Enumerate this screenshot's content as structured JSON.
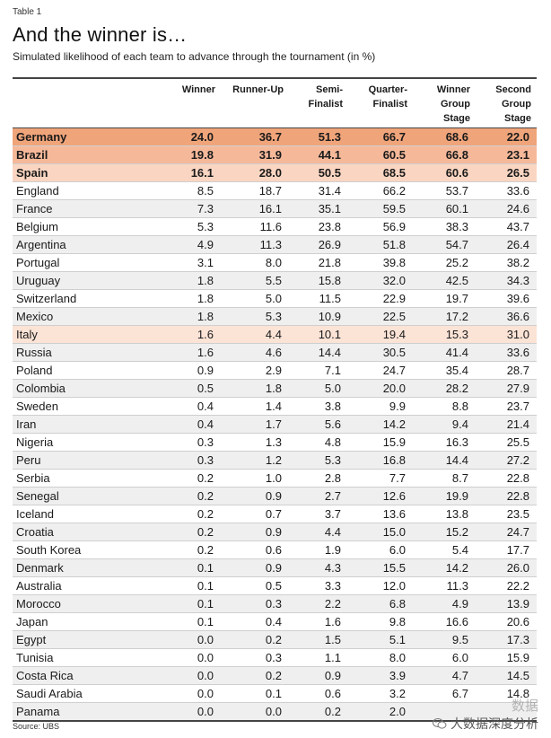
{
  "header": {
    "label": "Table 1",
    "title": "And the winner is…",
    "subtitle": "Simulated likelihood of each team to advance through the tournament (in %)"
  },
  "table": {
    "columns": [
      "",
      "Winner",
      "Runner-Up",
      "Semi-\nFinalist",
      "Quarter-\nFinalist",
      "Winner\nGroup\nStage",
      "Second\nGroup\nStage"
    ],
    "rows": [
      {
        "team": "Germany",
        "v": [
          "24.0",
          "36.7",
          "51.3",
          "66.7",
          "68.6",
          "22.0"
        ],
        "style": "hl-1"
      },
      {
        "team": "Brazil",
        "v": [
          "19.8",
          "31.9",
          "44.1",
          "60.5",
          "66.8",
          "23.1"
        ],
        "style": "hl-2"
      },
      {
        "team": "Spain",
        "v": [
          "16.1",
          "28.0",
          "50.5",
          "68.5",
          "60.6",
          "26.5"
        ],
        "style": "hl-3"
      },
      {
        "team": "England",
        "v": [
          "8.5",
          "18.7",
          "31.4",
          "66.2",
          "53.7",
          "33.6"
        ],
        "style": ""
      },
      {
        "team": "France",
        "v": [
          "7.3",
          "16.1",
          "35.1",
          "59.5",
          "60.1",
          "24.6"
        ],
        "style": "alt"
      },
      {
        "team": "Belgium",
        "v": [
          "5.3",
          "11.6",
          "23.8",
          "56.9",
          "38.3",
          "43.7"
        ],
        "style": ""
      },
      {
        "team": "Argentina",
        "v": [
          "4.9",
          "11.3",
          "26.9",
          "51.8",
          "54.7",
          "26.4"
        ],
        "style": "alt"
      },
      {
        "team": "Portugal",
        "v": [
          "3.1",
          "8.0",
          "21.8",
          "39.8",
          "25.2",
          "38.2"
        ],
        "style": ""
      },
      {
        "team": "Uruguay",
        "v": [
          "1.8",
          "5.5",
          "15.8",
          "32.0",
          "42.5",
          "34.3"
        ],
        "style": "alt"
      },
      {
        "team": "Switzerland",
        "v": [
          "1.8",
          "5.0",
          "11.5",
          "22.9",
          "19.7",
          "39.6"
        ],
        "style": ""
      },
      {
        "team": "Mexico",
        "v": [
          "1.8",
          "5.3",
          "10.9",
          "22.5",
          "17.2",
          "36.6"
        ],
        "style": "alt"
      },
      {
        "team": "Italy",
        "v": [
          "1.6",
          "4.4",
          "10.1",
          "19.4",
          "15.3",
          "31.0"
        ],
        "style": "hl-italy"
      },
      {
        "team": "Russia",
        "v": [
          "1.6",
          "4.6",
          "14.4",
          "30.5",
          "41.4",
          "33.6"
        ],
        "style": "alt"
      },
      {
        "team": "Poland",
        "v": [
          "0.9",
          "2.9",
          "7.1",
          "24.7",
          "35.4",
          "28.7"
        ],
        "style": ""
      },
      {
        "team": "Colombia",
        "v": [
          "0.5",
          "1.8",
          "5.0",
          "20.0",
          "28.2",
          "27.9"
        ],
        "style": "alt"
      },
      {
        "team": "Sweden",
        "v": [
          "0.4",
          "1.4",
          "3.8",
          "9.9",
          "8.8",
          "23.7"
        ],
        "style": ""
      },
      {
        "team": "Iran",
        "v": [
          "0.4",
          "1.7",
          "5.6",
          "14.2",
          "9.4",
          "21.4"
        ],
        "style": "alt"
      },
      {
        "team": "Nigeria",
        "v": [
          "0.3",
          "1.3",
          "4.8",
          "15.9",
          "16.3",
          "25.5"
        ],
        "style": ""
      },
      {
        "team": "Peru",
        "v": [
          "0.3",
          "1.2",
          "5.3",
          "16.8",
          "14.4",
          "27.2"
        ],
        "style": "alt"
      },
      {
        "team": "Serbia",
        "v": [
          "0.2",
          "1.0",
          "2.8",
          "7.7",
          "8.7",
          "22.8"
        ],
        "style": ""
      },
      {
        "team": "Senegal",
        "v": [
          "0.2",
          "0.9",
          "2.7",
          "12.6",
          "19.9",
          "22.8"
        ],
        "style": "alt"
      },
      {
        "team": "Iceland",
        "v": [
          "0.2",
          "0.7",
          "3.7",
          "13.6",
          "13.8",
          "23.5"
        ],
        "style": ""
      },
      {
        "team": "Croatia",
        "v": [
          "0.2",
          "0.9",
          "4.4",
          "15.0",
          "15.2",
          "24.7"
        ],
        "style": "alt"
      },
      {
        "team": "South Korea",
        "v": [
          "0.2",
          "0.6",
          "1.9",
          "6.0",
          "5.4",
          "17.7"
        ],
        "style": ""
      },
      {
        "team": "Denmark",
        "v": [
          "0.1",
          "0.9",
          "4.3",
          "15.5",
          "14.2",
          "26.0"
        ],
        "style": "alt"
      },
      {
        "team": "Australia",
        "v": [
          "0.1",
          "0.5",
          "3.3",
          "12.0",
          "11.3",
          "22.2"
        ],
        "style": ""
      },
      {
        "team": "Morocco",
        "v": [
          "0.1",
          "0.3",
          "2.2",
          "6.8",
          "4.9",
          "13.9"
        ],
        "style": "alt"
      },
      {
        "team": "Japan",
        "v": [
          "0.1",
          "0.4",
          "1.6",
          "9.8",
          "16.6",
          "20.6"
        ],
        "style": ""
      },
      {
        "team": "Egypt",
        "v": [
          "0.0",
          "0.2",
          "1.5",
          "5.1",
          "9.5",
          "17.3"
        ],
        "style": "alt"
      },
      {
        "team": "Tunisia",
        "v": [
          "0.0",
          "0.3",
          "1.1",
          "8.0",
          "6.0",
          "15.9"
        ],
        "style": ""
      },
      {
        "team": "Costa Rica",
        "v": [
          "0.0",
          "0.2",
          "0.9",
          "3.9",
          "4.7",
          "14.5"
        ],
        "style": "alt"
      },
      {
        "team": "Saudi Arabia",
        "v": [
          "0.0",
          "0.1",
          "0.6",
          "3.2",
          "6.7",
          "14.8"
        ],
        "style": ""
      },
      {
        "team": "Panama",
        "v": [
          "0.0",
          "0.0",
          "0.2",
          "2.0",
          "",
          ""
        ],
        "style": "alt"
      }
    ]
  },
  "footer": {
    "source": "Source: UBS",
    "watermark_top": "数据",
    "watermark_bottom": "大数据深度分析"
  },
  "colors": {
    "germany": "#f0a47a",
    "brazil": "#f5b99a",
    "spain": "#fad6c2",
    "italy": "#fbe3d6",
    "alt_row": "#efefef"
  }
}
